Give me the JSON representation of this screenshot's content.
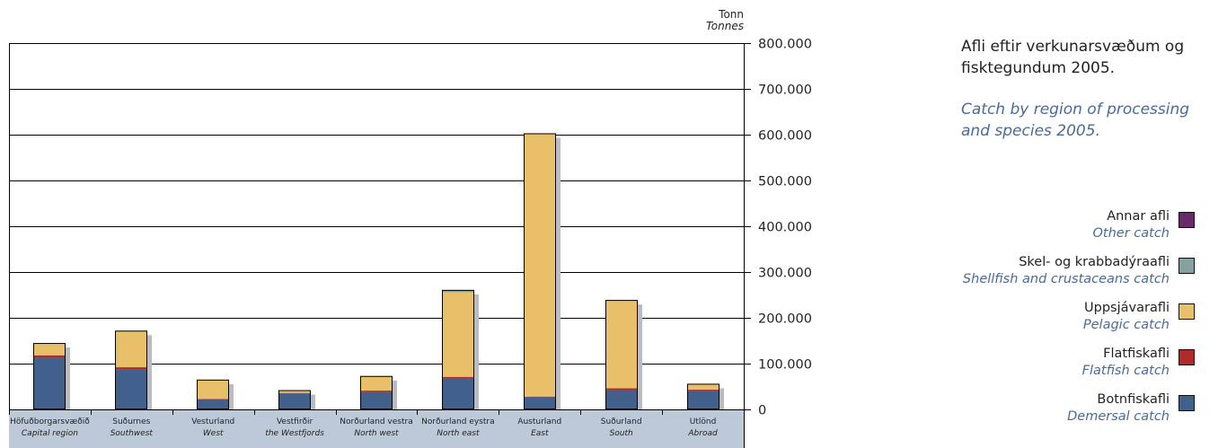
{
  "chart_data": {
    "type": "bar",
    "stacked": true,
    "title_is": "Afli eftir verkunarsvæðum og fisktegundum 2005.",
    "title_en": "Catch by region of processing and species 2005.",
    "unit_is": "Tonn",
    "unit_en": "Tonnes",
    "ylim": [
      0,
      800000
    ],
    "yticks": [
      {
        "value": 0,
        "label": "0"
      },
      {
        "value": 100000,
        "label": "100.000"
      },
      {
        "value": 200000,
        "label": "200.000"
      },
      {
        "value": 300000,
        "label": "300.000"
      },
      {
        "value": 400000,
        "label": "400.000"
      },
      {
        "value": 500000,
        "label": "500.000"
      },
      {
        "value": 600000,
        "label": "600.000"
      },
      {
        "value": 700000,
        "label": "700.000"
      },
      {
        "value": 800000,
        "label": "800.000"
      }
    ],
    "grid": true,
    "legend_position": "right",
    "categories": [
      {
        "is": "Höfuðborgarsvæðið",
        "en": "Capital region"
      },
      {
        "is": "Suðurnes",
        "en": "Southwest"
      },
      {
        "is": "Vesturland",
        "en": "West"
      },
      {
        "is": "Vestfirðir",
        "en": "the Westfjords"
      },
      {
        "is": "Norðurland vestra",
        "en": "North west"
      },
      {
        "is": "Norðurland eystra",
        "en": "North east"
      },
      {
        "is": "Austurland",
        "en": "East"
      },
      {
        "is": "Suðurland",
        "en": "South"
      },
      {
        "is": "Utlönd",
        "en": "Abroad"
      }
    ],
    "series": [
      {
        "name_is": "Botnfiskafli",
        "name_en": "Demersal catch",
        "color": "#41618c",
        "values": [
          113000,
          88000,
          22000,
          35000,
          38000,
          67000,
          27000,
          42000,
          40000
        ]
      },
      {
        "name_is": "Flatfiskafli",
        "name_en": "Flatfish catch",
        "color": "#b02a2a",
        "values": [
          5000,
          4000,
          1000,
          1000,
          3000,
          4000,
          1000,
          4000,
          3000
        ]
      },
      {
        "name_is": "Uppsjávarafli",
        "name_en": "Pelagic catch",
        "color": "#e8c069",
        "values": [
          27000,
          80000,
          42000,
          4000,
          32000,
          185000,
          575000,
          193000,
          13000
        ]
      },
      {
        "name_is": "Skel- og krabbadýraafli",
        "name_en": "Shellfish and crustaceans catch",
        "color": "#86a2a0",
        "values": [
          0,
          0,
          0,
          2000,
          0,
          5000,
          0,
          0,
          0
        ]
      },
      {
        "name_is": "Annar afli",
        "name_en": "Other catch",
        "color": "#6a2a6a",
        "values": [
          0,
          0,
          0,
          0,
          0,
          0,
          0,
          0,
          0
        ]
      }
    ]
  },
  "legend_order": [
    4,
    3,
    2,
    1,
    0
  ]
}
